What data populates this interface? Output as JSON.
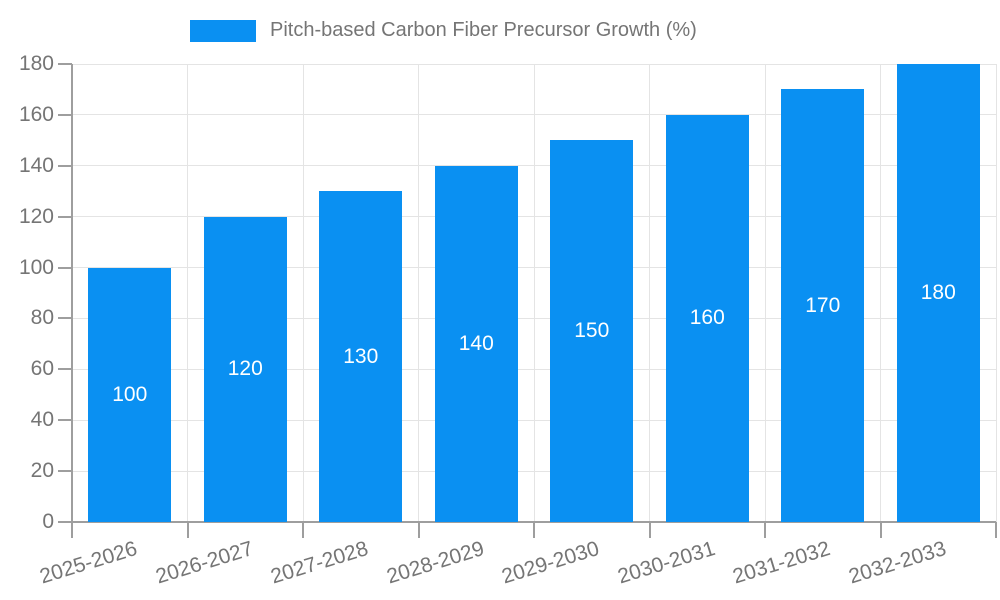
{
  "chart_data": {
    "type": "bar",
    "title": "",
    "categories": [
      "2025-2026",
      "2026-2027",
      "2027-2028",
      "2028-2029",
      "2029-2030",
      "2030-2031",
      "2031-2032",
      "2032-2033"
    ],
    "series": [
      {
        "name": "Pitch-based Carbon Fiber Precursor Growth (%)",
        "values": [
          100,
          120,
          130,
          140,
          150,
          160,
          170,
          180
        ]
      }
    ],
    "xlabel": "",
    "ylabel": "",
    "ylim": [
      0,
      180
    ],
    "ytick_step": 20,
    "yticks": [
      0,
      20,
      40,
      60,
      80,
      100,
      120,
      140,
      160,
      180
    ],
    "grid": true,
    "legend_position": "top",
    "value_labels_position": "inside-center"
  },
  "colors": {
    "bar": "#0a90f2",
    "axis": "#9e9e9e",
    "gridline": "#e4e4e4",
    "tick_text": "#757575",
    "value_label_text": "#ffffff",
    "background": "#ffffff"
  }
}
